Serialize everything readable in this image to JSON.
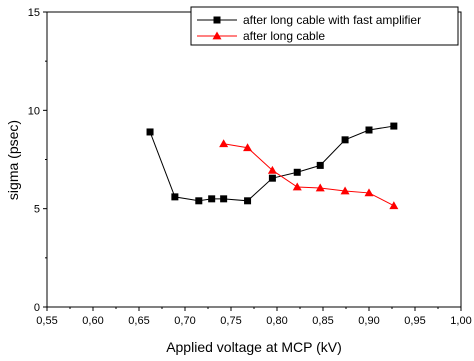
{
  "chart_data": {
    "type": "line",
    "title": "",
    "xlabel": "Applied voltage at MCP (kV)",
    "ylabel": "sigma (psec)",
    "xlim": [
      0.55,
      1.0
    ],
    "ylim": [
      0,
      15
    ],
    "x_ticks": [
      0.55,
      0.6,
      0.65,
      0.7,
      0.75,
      0.8,
      0.85,
      0.9,
      0.95,
      1.0
    ],
    "x_tick_labels": [
      "0,55",
      "0,60",
      "0,65",
      "0,70",
      "0,75",
      "0,80",
      "0,85",
      "0,90",
      "0,95",
      "1,00"
    ],
    "y_ticks": [
      0,
      5,
      10,
      15
    ],
    "y_tick_labels": [
      "0",
      "5",
      "10",
      "15"
    ],
    "grid": false,
    "legend_position": "top-right",
    "series": [
      {
        "name": "after long cable with fast amplifier",
        "color": "#000000",
        "marker": "square",
        "x": [
          0.662,
          0.689,
          0.715,
          0.729,
          0.742,
          0.768,
          0.795,
          0.822,
          0.847,
          0.874,
          0.9,
          0.927
        ],
        "y": [
          8.9,
          5.6,
          5.4,
          5.5,
          5.5,
          5.4,
          6.55,
          6.85,
          7.2,
          8.5,
          9.0,
          9.2
        ]
      },
      {
        "name": "after long cable",
        "color": "#ff0000",
        "marker": "triangle",
        "x": [
          0.742,
          0.768,
          0.795,
          0.822,
          0.847,
          0.874,
          0.9,
          0.927
        ],
        "y": [
          8.3,
          8.1,
          6.95,
          6.1,
          6.05,
          5.9,
          5.8,
          5.15
        ]
      }
    ]
  }
}
